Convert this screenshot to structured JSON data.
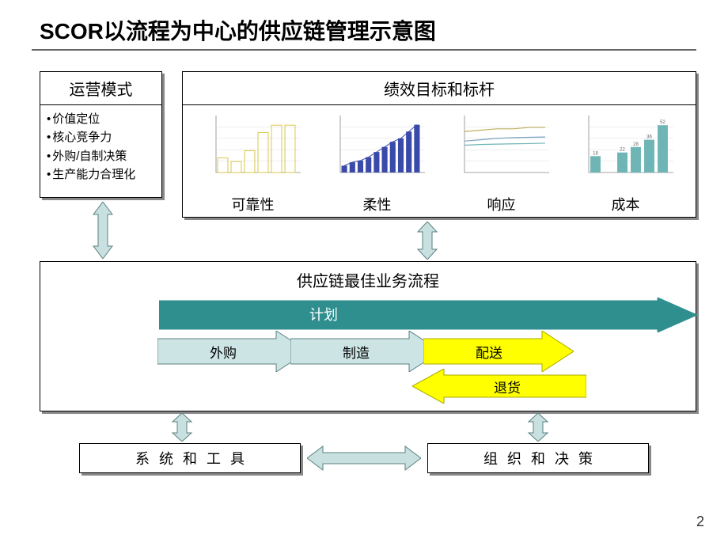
{
  "title": "SCOR以流程为中心的供应链管理示意图",
  "page_number": "2",
  "colors": {
    "arrow_fill": "#c8e0e0",
    "arrow_stroke": "#5a8080",
    "plan_fill": "#2f8f8f",
    "yellow": "#ffff00",
    "light_blue": "#cde4e4",
    "chart_yellow": "#d9c94a",
    "chart_blue": "#3a4aa8",
    "chart_bot_line": "#7aa0c0",
    "chart_top_line": "#c0b060",
    "chart_teal": "#6fb5b5",
    "box_shadow": "#888888",
    "background": "#ffffff"
  },
  "op_model": {
    "header": "运营模式",
    "items": [
      "价值定位",
      "核心竞争力",
      "外购/自制决策",
      "生产能力合理化"
    ]
  },
  "perf": {
    "header": "绩效目标和标杆",
    "charts": [
      {
        "label": "可靠性",
        "type": "bar",
        "color": "#d9c94a",
        "values": [
          80,
          60,
          120,
          220,
          260,
          260
        ],
        "ymax": 300,
        "xmax": 300
      },
      {
        "label": "柔性",
        "type": "bar_with_line",
        "bar_color": "#3a4aa8",
        "line_color": "#3a4aa8",
        "values": [
          200,
          300,
          350,
          450,
          600,
          750,
          900,
          1000,
          1200,
          1400
        ],
        "ymax": 1600
      },
      {
        "label": "响应",
        "type": "multiline",
        "lines": [
          {
            "color": "#c0b060",
            "values": [
              300,
              310,
              320,
              320,
              330,
              330
            ]
          },
          {
            "color": "#7aa0c0",
            "values": [
              230,
              240,
              250,
              255,
              258,
              260
            ]
          },
          {
            "color": "#6fb5b5",
            "values": [
              200,
              205,
              208,
              210,
              212,
              215
            ]
          }
        ],
        "ymax": 400
      },
      {
        "label": "成本",
        "type": "bar",
        "color": "#6fb5b5",
        "values": [
          18,
          0,
          22,
          28,
          36,
          52
        ],
        "value_labels": [
          "18",
          "",
          "22",
          "28",
          "36",
          "52"
        ],
        "ymax": 60
      }
    ]
  },
  "best": {
    "header": "供应链最佳业务流程",
    "plan": "计划",
    "source": "外购",
    "make": "制造",
    "deliver": "配送",
    "return": "退货"
  },
  "bottom": {
    "systems": "系统和工具",
    "org": "组织和决策"
  }
}
